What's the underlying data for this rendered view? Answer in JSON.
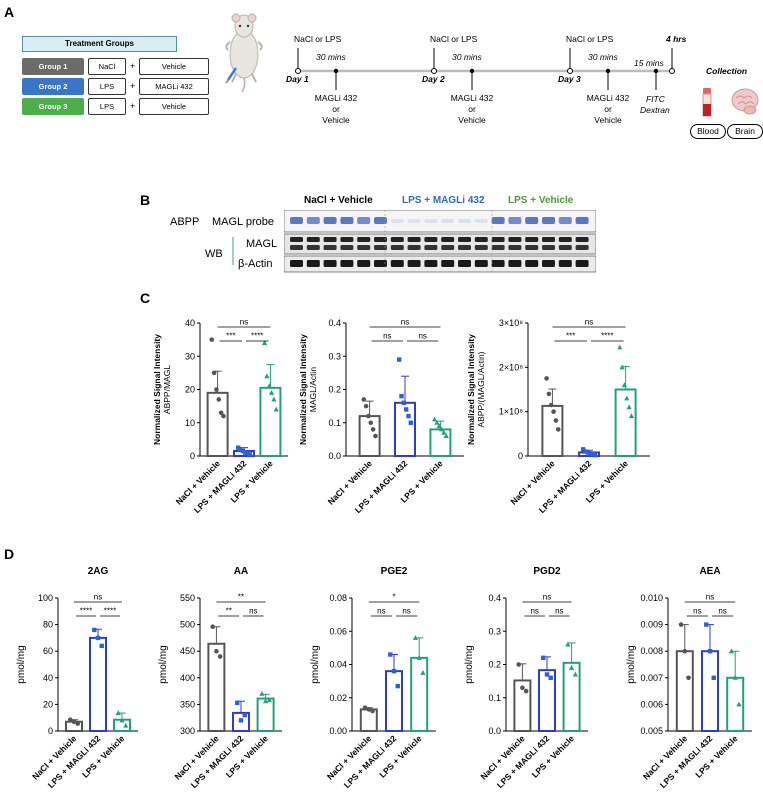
{
  "panels": {
    "a": "A",
    "b": "B",
    "c": "C",
    "d": "D"
  },
  "treatment": {
    "title": "Treatment Groups",
    "groups": [
      {
        "label": "Group 1",
        "color": "#6b6b6b",
        "first": "NaCl",
        "second": "Vehicle"
      },
      {
        "label": "Group 2",
        "color": "#3a76c8",
        "first": "LPS",
        "second": "MAGLi 432"
      },
      {
        "label": "Group 3",
        "color": "#4fae4c",
        "first": "LPS",
        "second": "Vehicle"
      }
    ],
    "plus": "+"
  },
  "timeline": {
    "top_labels": [
      "NaCl or LPS",
      "NaCl or LPS",
      "NaCl or LPS"
    ],
    "intervals": [
      "30 mins",
      "30 mins",
      "30 mins",
      "15 mins"
    ],
    "days": [
      "Day 1",
      "Day 2",
      "Day 3"
    ],
    "drug_line1": "MAGLi 432",
    "drug_line2": "or",
    "drug_line3": "Vehicle",
    "end_label": "4 hrs",
    "fitc1": "FITC",
    "fitc2": "Dextran",
    "collection": "Collection",
    "blood": "Blood",
    "brain": "Brain"
  },
  "blot": {
    "groups": [
      "NaCl + Vehicle",
      "LPS + MAGLi 432",
      "LPS + Vehicle"
    ],
    "group_colors": [
      "#000000",
      "#2f6db6",
      "#4c9a3c"
    ],
    "abpp": "ABPP",
    "probe": "MAGL probe",
    "wb": "WB",
    "magl": "MAGL",
    "actin": "β-Actin"
  },
  "chart_data": [
    {
      "type": "bar",
      "panel": "C",
      "ylabel": "Normalized Signal Intensity",
      "ylabel2": "ABPP/MAGL",
      "ylim": [
        0,
        40
      ],
      "yticks": [
        "0",
        "10",
        "20",
        "30",
        "40"
      ],
      "categories": [
        "NaCl + Vehicle",
        "LPS + MAGLi 432",
        "LPS + Vehicle"
      ],
      "values": [
        19,
        1.5,
        20.5
      ],
      "errors": [
        6.5,
        1,
        7
      ],
      "points": [
        [
          35,
          25,
          20,
          17,
          13,
          12
        ],
        [
          2.5,
          2,
          1.5,
          1,
          1,
          0.5
        ],
        [
          34,
          24,
          21,
          19,
          17,
          14
        ]
      ],
      "sig": [
        {
          "from": 0,
          "to": 1,
          "text": "***"
        },
        {
          "from": 1,
          "to": 2,
          "text": "****"
        },
        {
          "from": 0,
          "to": 2,
          "text": "ns"
        }
      ]
    },
    {
      "type": "bar",
      "panel": "C",
      "ylabel": "Normalized Signal Intensity",
      "ylabel2": "MAGL/Actin",
      "ylim": [
        0,
        0.4
      ],
      "yticks": [
        "0.0",
        "0.1",
        "0.2",
        "0.3",
        "0.4"
      ],
      "categories": [
        "NaCl + Vehicle",
        "LPS + MAGLi 432",
        "LPS + Vehicle"
      ],
      "values": [
        0.12,
        0.16,
        0.08
      ],
      "errors": [
        0.045,
        0.08,
        0.025
      ],
      "points": [
        [
          0.17,
          0.15,
          0.12,
          0.1,
          0.08,
          0.06
        ],
        [
          0.29,
          0.18,
          0.16,
          0.14,
          0.12,
          0.1
        ],
        [
          0.11,
          0.1,
          0.09,
          0.08,
          0.07,
          0.06
        ]
      ],
      "sig": [
        {
          "from": 0,
          "to": 1,
          "text": "ns"
        },
        {
          "from": 1,
          "to": 2,
          "text": "ns"
        },
        {
          "from": 0,
          "to": 2,
          "text": "ns"
        }
      ]
    },
    {
      "type": "bar",
      "panel": "C",
      "ylabel": "Normalized Signal Intensity",
      "ylabel2": "ABPP/(MAGL/Actin)",
      "ylim": [
        0,
        300000000
      ],
      "yticks": [
        "0",
        "1×10⁸",
        "2×10⁸",
        "3×10⁸"
      ],
      "categories": [
        "NaCl + Vehicle",
        "LPS + MAGLi 432",
        "LPS + Vehicle"
      ],
      "values": [
        113000000,
        8000000,
        150000000
      ],
      "errors": [
        38000000,
        5000000,
        52000000
      ],
      "points": [
        [
          175000000,
          140000000,
          115000000,
          100000000,
          80000000,
          60000000
        ],
        [
          15000000,
          10000000,
          8000000,
          6000000,
          4000000,
          2000000
        ],
        [
          245000000,
          200000000,
          160000000,
          130000000,
          110000000,
          90000000
        ]
      ],
      "sig": [
        {
          "from": 0,
          "to": 1,
          "text": "***"
        },
        {
          "from": 1,
          "to": 2,
          "text": "****"
        },
        {
          "from": 0,
          "to": 2,
          "text": "ns"
        }
      ]
    },
    {
      "type": "bar",
      "panel": "D",
      "title": "2AG",
      "ylabel": "pmol/mg",
      "ylim": [
        0,
        100
      ],
      "yticks": [
        "0",
        "20",
        "40",
        "60",
        "80",
        "100"
      ],
      "categories": [
        "NaCl + Vehicle",
        "LPS + MAGLi 432",
        "LPS + Vehicle"
      ],
      "values": [
        7,
        70,
        8.5
      ],
      "errors": [
        1.5,
        6.5,
        5
      ],
      "points": [
        [
          8.5,
          7,
          5.5
        ],
        [
          76,
          70,
          64
        ],
        [
          13.5,
          8,
          4
        ]
      ],
      "sig": [
        {
          "from": 0,
          "to": 1,
          "text": "****"
        },
        {
          "from": 1,
          "to": 2,
          "text": "****"
        },
        {
          "from": 0,
          "to": 2,
          "text": "ns"
        }
      ]
    },
    {
      "type": "bar",
      "panel": "D",
      "title": "AA",
      "ylabel": "pmol/mg",
      "ylim": [
        300,
        550
      ],
      "yticks": [
        "300",
        "350",
        "400",
        "450",
        "500",
        "550"
      ],
      "categories": [
        "NaCl + Vehicle",
        "LPS + MAGLi 432",
        "LPS + Vehicle"
      ],
      "values": [
        464,
        334,
        361
      ],
      "errors": [
        32,
        22,
        8
      ],
      "points": [
        [
          496,
          450,
          440
        ],
        [
          353,
          320,
          330
        ],
        [
          370,
          356,
          358
        ]
      ],
      "sig": [
        {
          "from": 0,
          "to": 1,
          "text": "**"
        },
        {
          "from": 1,
          "to": 2,
          "text": "ns"
        },
        {
          "from": 0,
          "to": 2,
          "text": "**"
        }
      ]
    },
    {
      "type": "bar",
      "panel": "D",
      "title": "PGE2",
      "ylabel": "pmol/mg",
      "ylim": [
        0,
        0.08
      ],
      "yticks": [
        "0.00",
        "0.02",
        "0.04",
        "0.06",
        "0.08"
      ],
      "categories": [
        "NaCl + Vehicle",
        "LPS + MAGLi 432",
        "LPS + Vehicle"
      ],
      "values": [
        0.013,
        0.036,
        0.044
      ],
      "errors": [
        0.001,
        0.01,
        0.012
      ],
      "points": [
        [
          0.014,
          0.013,
          0.012
        ],
        [
          0.046,
          0.036,
          0.027
        ],
        [
          0.056,
          0.044,
          0.035
        ]
      ],
      "sig": [
        {
          "from": 0,
          "to": 1,
          "text": "ns"
        },
        {
          "from": 1,
          "to": 2,
          "text": "ns"
        },
        {
          "from": 0,
          "to": 2,
          "text": "*"
        }
      ]
    },
    {
      "type": "bar",
      "panel": "D",
      "title": "PGD2",
      "ylabel": "pmol/mg",
      "ylim": [
        0,
        0.4
      ],
      "yticks": [
        "0.0",
        "0.1",
        "0.2",
        "0.3",
        "0.4"
      ],
      "categories": [
        "NaCl + Vehicle",
        "LPS + MAGLi 432",
        "LPS + Vehicle"
      ],
      "values": [
        0.152,
        0.183,
        0.205
      ],
      "errors": [
        0.05,
        0.04,
        0.06
      ],
      "points": [
        [
          0.2,
          0.13,
          0.12
        ],
        [
          0.22,
          0.17,
          0.16
        ],
        [
          0.26,
          0.19,
          0.17
        ]
      ],
      "sig": [
        {
          "from": 0,
          "to": 1,
          "text": "ns"
        },
        {
          "from": 1,
          "to": 2,
          "text": "ns"
        },
        {
          "from": 0,
          "to": 2,
          "text": "ns"
        }
      ]
    },
    {
      "type": "bar",
      "panel": "D",
      "title": "AEA",
      "ylabel": "pmol/mg",
      "ylim": [
        0.005,
        0.01
      ],
      "yticks": [
        "0.005",
        "0.006",
        "0.007",
        "0.008",
        "0.009",
        "0.010"
      ],
      "categories": [
        "NaCl + Vehicle",
        "LPS + MAGLi 432",
        "LPS + Vehicle"
      ],
      "values": [
        0.008,
        0.008,
        0.007
      ],
      "errors": [
        0.001,
        0.001,
        0.001
      ],
      "points": [
        [
          0.009,
          0.008,
          0.007
        ],
        [
          0.009,
          0.008,
          0.007
        ],
        [
          0.008,
          0.007,
          0.006
        ]
      ],
      "sig": [
        {
          "from": 0,
          "to": 1,
          "text": "ns"
        },
        {
          "from": 1,
          "to": 2,
          "text": "ns"
        },
        {
          "from": 0,
          "to": 2,
          "text": "ns"
        }
      ]
    }
  ],
  "colors": {
    "nacl": "#555555",
    "magli": "#2d3ccf",
    "lps": "#22a07a",
    "magli_dot": "#2d5fd8"
  }
}
